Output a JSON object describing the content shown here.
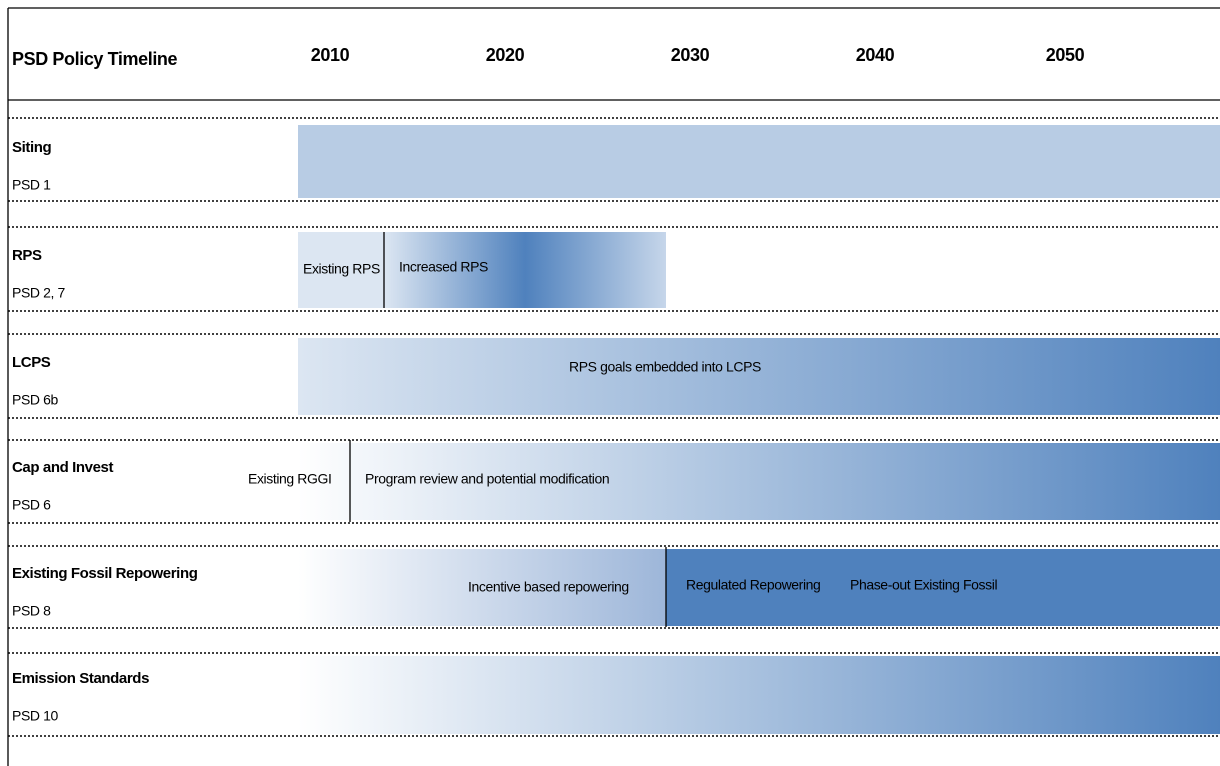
{
  "header": {
    "title": "PSD Policy Timeline",
    "years": [
      "2010",
      "2020",
      "2030",
      "2040",
      "2050"
    ]
  },
  "rows": [
    {
      "name": "Siting",
      "code": "PSD 1"
    },
    {
      "name": "RPS",
      "code": "PSD 2, 7",
      "labels": [
        "Existing RPS",
        "Increased RPS"
      ]
    },
    {
      "name": "LCPS",
      "code": "PSD 6b",
      "labels": [
        "RPS goals embedded into LCPS"
      ]
    },
    {
      "name": "Cap and Invest",
      "code": "PSD 6",
      "labels": [
        "Existing RGGI",
        "Program review and potential modification"
      ]
    },
    {
      "name": "Existing Fossil Repowering",
      "code": "PSD 8",
      "labels": [
        "Incentive based repowering",
        "Regulated Repowering",
        "Phase-out Existing Fossil"
      ]
    },
    {
      "name": "Emission Standards",
      "code": "PSD 10"
    }
  ]
}
